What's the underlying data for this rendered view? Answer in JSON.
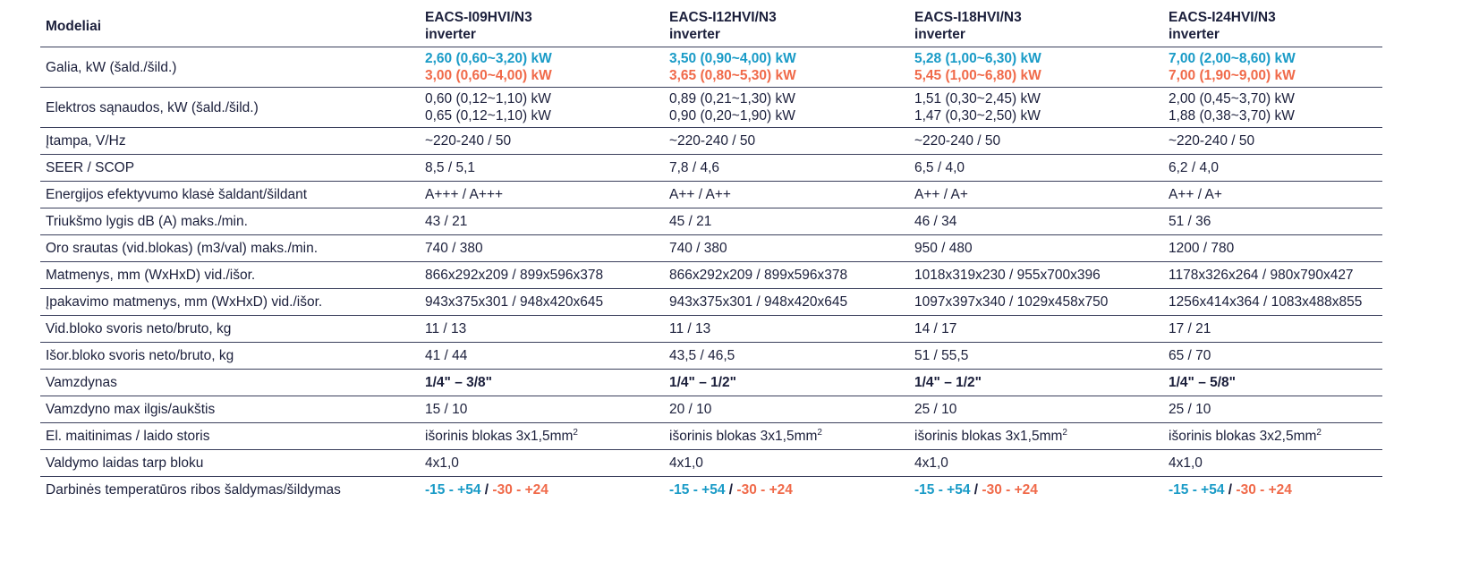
{
  "table": {
    "header_label": "Modeliai",
    "models": [
      {
        "name": "EACS-I09HVI/N3",
        "sub": "inverter"
      },
      {
        "name": "EACS-I12HVI/N3",
        "sub": "inverter"
      },
      {
        "name": "EACS-I18HVI/N3",
        "sub": "inverter"
      },
      {
        "name": "EACS-I24HVI/N3",
        "sub": "inverter"
      }
    ],
    "rows": {
      "power": {
        "label": "Galia, kW (šald./šild.)",
        "cool": [
          "2,60 (0,60~3,20) kW",
          "3,50 (0,90~4,00) kW",
          "5,28 (1,00~6,30) kW",
          "7,00 (2,00~8,60) kW"
        ],
        "heat": [
          "3,00 (0,60~4,00) kW",
          "3,65 (0,80~5,30) kW",
          "5,45 (1,00~6,80) kW",
          "7,00 (1,90~9,00) kW"
        ]
      },
      "consumption": {
        "label": "Elektros sąnaudos, kW  (šald./šild.)",
        "line1": [
          "0,60 (0,12~1,10) kW",
          "0,89 (0,21~1,30) kW",
          "1,51 (0,30~2,45) kW",
          "2,00 (0,45~3,70) kW"
        ],
        "line2": [
          "0,65 (0,12~1,10) kW",
          "0,90 (0,20~1,90) kW",
          "1,47 (0,30~2,50) kW",
          "1,88 (0,38~3,70) kW"
        ]
      },
      "simple": [
        {
          "label": "Įtampa, V/Hz",
          "values": [
            "~220-240 / 50",
            "~220-240 / 50",
            "~220-240 / 50",
            "~220-240 / 50"
          ]
        },
        {
          "label": "SEER / SCOP",
          "values": [
            "8,5 / 5,1",
            "7,8 / 4,6",
            "6,5 / 4,0",
            "6,2 / 4,0"
          ]
        },
        {
          "label": "Energijos efektyvumo klasė šaldant/šildant",
          "values": [
            "A+++ / A+++",
            "A++ / A++",
            "A++ / A+",
            "A++ / A+"
          ]
        },
        {
          "label": "Triukšmo lygis dB (A) maks./min.",
          "values": [
            "43 / 21",
            "45 / 21",
            "46 / 34",
            "51 / 36"
          ]
        },
        {
          "label": "Oro srautas (vid.blokas) (m3/val) maks./min.",
          "values": [
            "740 / 380",
            "740 / 380",
            "950 / 480",
            "1200 / 780"
          ]
        },
        {
          "label": "Matmenys, mm (WxHxD) vid./išor.",
          "values": [
            "866x292x209 / 899x596x378",
            "866x292x209 / 899x596x378",
            "1018x319x230 / 955x700x396",
            "1178x326x264 / 980x790x427"
          ]
        },
        {
          "label": "Įpakavimo matmenys, mm (WxHxD) vid./išor.",
          "values": [
            "943x375x301 / 948x420x645",
            "943x375x301 / 948x420x645",
            "1097x397x340 / 1029x458x750",
            "1256x414x364 / 1083x488x855"
          ]
        },
        {
          "label": "Vid.bloko svoris neto/bruto, kg",
          "values": [
            "11 / 13",
            "11 / 13",
            "14 / 17",
            "17 / 21"
          ]
        },
        {
          "label": "Išor.bloko svoris neto/bruto, kg",
          "values": [
            "41 / 44",
            "43,5 / 46,5",
            "51 / 55,5",
            "65 / 70"
          ]
        }
      ],
      "piping": {
        "label": "Vamzdynas",
        "values": [
          "1/4\" – 3/8\"",
          "1/4\" – 1/2\"",
          "1/4\" – 1/2\"",
          "1/4\" – 5/8\""
        ]
      },
      "simple2": [
        {
          "label": "Vamzdyno max ilgis/aukštis",
          "values": [
            "15 / 10",
            "20 / 10",
            "25 / 10",
            "25 / 10"
          ]
        }
      ],
      "power_supply": {
        "label": "El. maitinimas / laido storis",
        "values": [
          "išorinis blokas 3x1,5mm",
          "išorinis blokas 3x1,5mm",
          "išorinis blokas 3x1,5mm",
          "išorinis blokas 3x2,5mm"
        ],
        "sup": "2"
      },
      "simple3": [
        {
          "label": "Valdymo laidas tarp bloku",
          "values": [
            "4x1,0",
            "4x1,0",
            "4x1,0",
            "4x1,0"
          ]
        }
      ],
      "temperature": {
        "label": "Darbinės temperatūros ribos šaldymas/šildymas",
        "cool": "-15 - +54",
        "separator": "/",
        "heat": "-30 - +24"
      }
    }
  },
  "colors": {
    "text": "#1b1f3b",
    "cool": "#1a9bc7",
    "heat": "#f06a4a",
    "rule": "#3a3f5c"
  }
}
